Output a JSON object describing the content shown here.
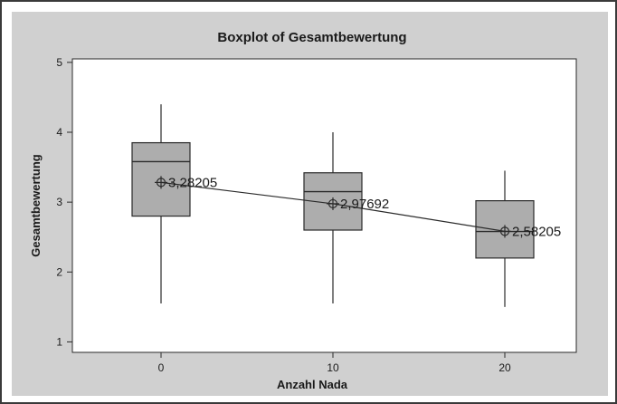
{
  "chart_data": {
    "type": "boxplot",
    "title": "Boxplot of Gesamtbewertung",
    "xlabel": "Anzahl Nada",
    "ylabel": "Gesamtbewertung",
    "categories": [
      "0",
      "10",
      "20"
    ],
    "yticks": [
      "1",
      "2",
      "3",
      "4",
      "5"
    ],
    "ylim": [
      0.85,
      5.05
    ],
    "boxes": [
      {
        "category": "0",
        "whisker_low": 1.55,
        "q1": 2.8,
        "median": 3.58,
        "q3": 3.85,
        "whisker_high": 4.4,
        "mean": 3.28205,
        "mean_label": "3,28205"
      },
      {
        "category": "10",
        "whisker_low": 1.55,
        "q1": 2.6,
        "median": 3.15,
        "q3": 3.42,
        "whisker_high": 4.0,
        "mean": 2.97692,
        "mean_label": "2,97692"
      },
      {
        "category": "20",
        "whisker_low": 1.5,
        "q1": 2.2,
        "median": 2.58,
        "q3": 3.02,
        "whisker_high": 3.45,
        "mean": 2.58205,
        "mean_label": "2,58205"
      }
    ],
    "grid": false,
    "mean_connect_line": true,
    "colors": {
      "box_fill": "#adadad",
      "plot_bg": "#ffffff",
      "outer_bg": "#d0d0d0",
      "stroke": "#2a2a2a"
    }
  }
}
